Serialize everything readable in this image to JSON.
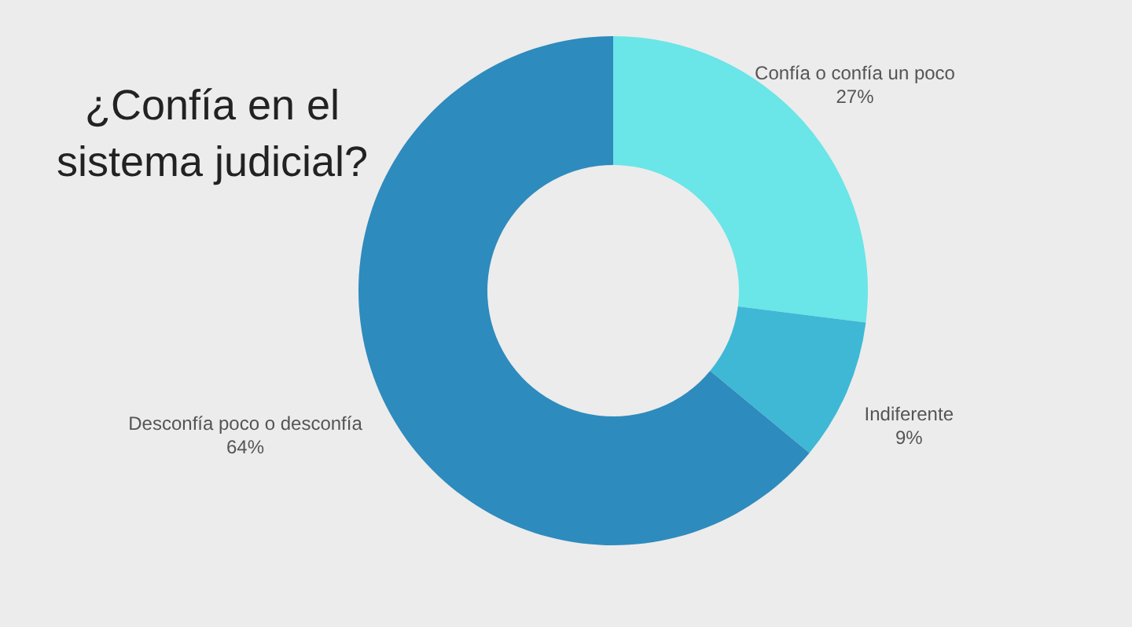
{
  "chart_data": {
    "type": "donut",
    "title": "¿Confía en el sistema judicial?",
    "categories": [
      "Confía o confía un poco",
      "Indiferente",
      "Desconfía poco o desconfía"
    ],
    "values": [
      27,
      9,
      64
    ],
    "colors": [
      "#6ae5e8",
      "#3fb8d6",
      "#2e8bbd"
    ],
    "value_labels": [
      "27%",
      "9%",
      "64%"
    ]
  }
}
